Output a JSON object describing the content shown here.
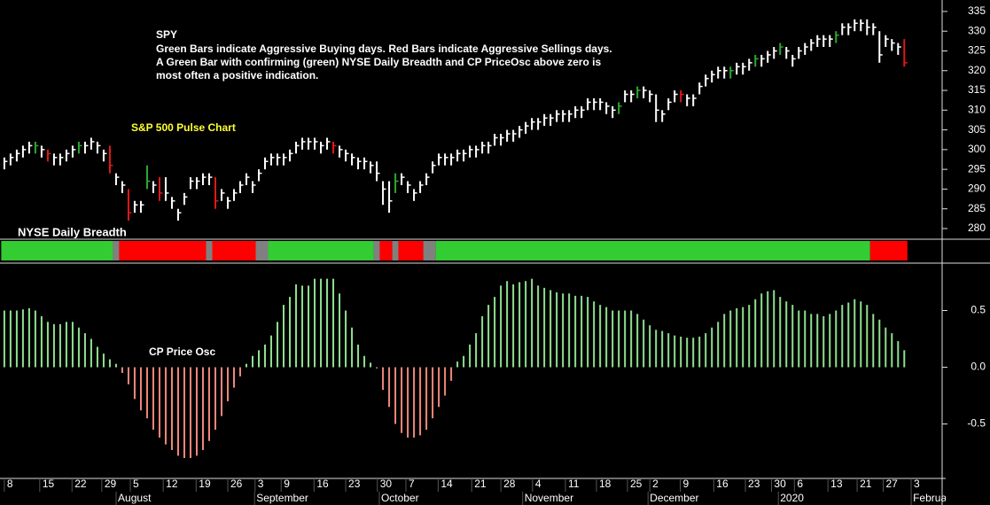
{
  "chart_data": [
    {
      "type": "ohlc",
      "title": "S&P 500 Pulse Chart",
      "annotations": [
        "SPY",
        "Green Bars indicate Aggressive Buying days. Red Bars indicate Aggressive Sellings days.",
        "A Green Bar with confirming (green) NYSE Daily Breadth and CP PriceOsc above zero is",
        "most often a positive indication."
      ],
      "high": [
        298,
        299,
        300,
        301,
        302,
        302,
        301,
        300,
        299,
        299,
        300,
        301,
        302,
        302,
        303,
        302,
        300,
        301,
        294,
        292,
        290,
        287,
        287,
        296,
        292,
        293,
        293,
        288,
        285,
        289,
        293,
        293,
        294,
        294,
        293,
        290,
        288,
        290,
        292,
        294,
        292,
        295,
        298,
        299,
        299,
        299,
        300,
        302,
        303,
        303,
        303,
        302,
        303,
        302,
        301,
        300,
        299,
        298,
        298,
        297,
        297,
        292,
        292,
        294,
        294,
        292,
        290,
        292,
        294,
        297,
        299,
        299,
        299,
        300,
        300,
        301,
        301,
        302,
        302,
        304,
        304,
        305,
        305,
        306,
        307,
        308,
        308,
        309,
        309,
        310,
        310,
        310,
        311,
        311,
        313,
        313,
        313,
        312,
        311,
        312,
        315,
        315,
        316,
        316,
        315,
        314,
        310,
        313,
        315,
        315,
        314,
        314,
        317,
        319,
        320,
        321,
        321,
        321,
        322,
        322,
        323,
        324,
        324,
        325,
        326,
        327,
        326,
        324,
        326,
        327,
        328,
        329,
        329,
        329,
        330,
        332,
        332,
        333,
        333,
        333,
        332,
        330,
        329,
        328,
        327,
        328
      ],
      "low": [
        295,
        296,
        297,
        298,
        299,
        299,
        298,
        297,
        296,
        296,
        297,
        298,
        299,
        299,
        300,
        299,
        297,
        294,
        291,
        289,
        282,
        284,
        284,
        290,
        289,
        287,
        287,
        285,
        282,
        286,
        290,
        290,
        291,
        291,
        285,
        287,
        285,
        287,
        289,
        291,
        289,
        292,
        295,
        296,
        296,
        296,
        297,
        299,
        300,
        300,
        300,
        299,
        300,
        299,
        298,
        297,
        296,
        295,
        295,
        294,
        292,
        286,
        284,
        289,
        291,
        289,
        287,
        289,
        291,
        294,
        296,
        296,
        296,
        297,
        297,
        298,
        298,
        299,
        299,
        301,
        301,
        302,
        302,
        303,
        304,
        305,
        305,
        306,
        306,
        307,
        307,
        307,
        308,
        308,
        310,
        310,
        310,
        309,
        308,
        309,
        312,
        312,
        313,
        313,
        312,
        307,
        307,
        310,
        312,
        312,
        311,
        311,
        314,
        316,
        317,
        318,
        318,
        318,
        319,
        319,
        320,
        321,
        321,
        322,
        323,
        324,
        323,
        321,
        323,
        324,
        325,
        326,
        326,
        326,
        327,
        329,
        329,
        330,
        330,
        329,
        329,
        322,
        326,
        325,
        324,
        321
      ],
      "close": [
        297,
        298,
        299,
        300,
        301,
        301,
        300,
        299,
        298,
        298,
        299,
        300,
        301,
        301,
        302,
        301,
        299,
        296,
        293,
        291,
        284,
        286,
        286,
        292,
        291,
        289,
        289,
        287,
        284,
        288,
        292,
        292,
        293,
        293,
        287,
        289,
        287,
        289,
        291,
        293,
        291,
        294,
        297,
        298,
        298,
        298,
        299,
        301,
        302,
        302,
        302,
        301,
        302,
        301,
        300,
        299,
        298,
        297,
        297,
        296,
        294,
        290,
        287,
        292,
        293,
        291,
        289,
        291,
        293,
        296,
        298,
        298,
        298,
        299,
        299,
        300,
        300,
        301,
        301,
        303,
        303,
        304,
        304,
        305,
        306,
        307,
        307,
        308,
        308,
        309,
        309,
        309,
        310,
        310,
        312,
        312,
        312,
        311,
        310,
        311,
        314,
        314,
        315,
        315,
        314,
        310,
        309,
        312,
        314,
        314,
        313,
        313,
        316,
        318,
        319,
        320,
        320,
        320,
        321,
        321,
        322,
        323,
        323,
        324,
        325,
        326,
        325,
        323,
        325,
        326,
        327,
        328,
        328,
        328,
        329,
        331,
        331,
        332,
        332,
        331,
        331,
        324,
        328,
        327,
        326,
        322
      ],
      "bar_color": "#ffffff",
      "up_color": "#2ea82e",
      "down_color": "#e01818",
      "green_bars": [
        5,
        12,
        23,
        63,
        99,
        102,
        117,
        121,
        125,
        134
      ],
      "red_bars": [
        7,
        17,
        20,
        25,
        34,
        53,
        109,
        145
      ],
      "xlim": [
        -0.7,
        151.1
      ],
      "ylim": [
        277.3,
        337.9
      ],
      "yticks": [
        280,
        285,
        290,
        295,
        300,
        305,
        310,
        315,
        320,
        325,
        330,
        335
      ]
    },
    {
      "type": "breadth",
      "title": "NYSE Daily Breadth",
      "segments": [
        {
          "color": "#33cc33",
          "days": 18
        },
        {
          "color": "#808080",
          "days": 1
        },
        {
          "color": "#ff0000",
          "days": 14
        },
        {
          "color": "#808080",
          "days": 1
        },
        {
          "color": "#ff0000",
          "days": 7
        },
        {
          "color": "#808080",
          "days": 2
        },
        {
          "color": "#33cc33",
          "days": 17
        },
        {
          "color": "#808080",
          "days": 1
        },
        {
          "color": "#ff0000",
          "days": 2
        },
        {
          "color": "#808080",
          "days": 1
        },
        {
          "color": "#ff0000",
          "days": 4
        },
        {
          "color": "#808080",
          "days": 2
        },
        {
          "color": "#33cc33",
          "days": 70
        },
        {
          "color": "#ff0000",
          "days": 6
        }
      ]
    },
    {
      "type": "bar",
      "title": "CP Price Osc",
      "values": [
        0.5,
        0.5,
        0.5,
        0.51,
        0.52,
        0.5,
        0.45,
        0.4,
        0.38,
        0.38,
        0.4,
        0.4,
        0.35,
        0.3,
        0.25,
        0.18,
        0.12,
        0.07,
        0.03,
        -0.05,
        -0.15,
        -0.28,
        -0.38,
        -0.45,
        -0.55,
        -0.62,
        -0.68,
        -0.73,
        -0.78,
        -0.8,
        -0.8,
        -0.78,
        -0.73,
        -0.65,
        -0.55,
        -0.43,
        -0.3,
        -0.18,
        -0.08,
        0.03,
        0.1,
        0.15,
        0.2,
        0.28,
        0.4,
        0.55,
        0.62,
        0.73,
        0.72,
        0.72,
        0.78,
        0.78,
        0.78,
        0.78,
        0.65,
        0.5,
        0.35,
        0.2,
        0.1,
        0.04,
        -0.01,
        -0.2,
        -0.35,
        -0.5,
        -0.58,
        -0.62,
        -0.62,
        -0.6,
        -0.55,
        -0.45,
        -0.35,
        -0.25,
        -0.12,
        0.05,
        0.1,
        0.2,
        0.3,
        0.45,
        0.55,
        0.62,
        0.72,
        0.76,
        0.73,
        0.75,
        0.76,
        0.78,
        0.72,
        0.7,
        0.68,
        0.66,
        0.65,
        0.65,
        0.63,
        0.63,
        0.62,
        0.58,
        0.55,
        0.53,
        0.5,
        0.5,
        0.5,
        0.5,
        0.47,
        0.42,
        0.37,
        0.33,
        0.32,
        0.3,
        0.28,
        0.27,
        0.26,
        0.26,
        0.27,
        0.3,
        0.35,
        0.4,
        0.47,
        0.5,
        0.52,
        0.53,
        0.55,
        0.6,
        0.65,
        0.67,
        0.68,
        0.62,
        0.58,
        0.55,
        0.5,
        0.5,
        0.47,
        0.47,
        0.45,
        0.47,
        0.5,
        0.55,
        0.57,
        0.6,
        0.58,
        0.55,
        0.47,
        0.42,
        0.35,
        0.3,
        0.23,
        0.15
      ],
      "pos_color": "#8fe08f",
      "neg_color": "#f0877c",
      "ylim": [
        -0.98,
        0.91
      ],
      "yticks": [
        -0.5,
        {
          "value": 0,
          "label": "0.0"
        },
        0.5
      ],
      "xlim": [
        -0.7,
        151.1
      ],
      "xticks": [
        {
          "value": 0,
          "label": "8"
        },
        {
          "value": 5.7,
          "label": "15"
        },
        {
          "value": 10.9,
          "label": "22"
        },
        {
          "value": 15.7,
          "label": "29"
        },
        {
          "value": 20.3,
          "label": "5"
        },
        {
          "value": 25.6,
          "label": "12"
        },
        {
          "value": 30.9,
          "label": "19"
        },
        {
          "value": 36,
          "label": "26"
        },
        {
          "value": 40.4,
          "label": "3"
        },
        {
          "value": 44.6,
          "label": "9"
        },
        {
          "value": 49.9,
          "label": "16"
        },
        {
          "value": 55,
          "label": "23"
        },
        {
          "value": 60.1,
          "label": "30"
        },
        {
          "value": 64.7,
          "label": "7"
        },
        {
          "value": 69.9,
          "label": "14"
        },
        {
          "value": 75.3,
          "label": "21"
        },
        {
          "value": 80,
          "label": "28"
        },
        {
          "value": 85.1,
          "label": "4"
        },
        {
          "value": 90.4,
          "label": "11"
        },
        {
          "value": 95.4,
          "label": "18"
        },
        {
          "value": 100.4,
          "label": "25"
        },
        {
          "value": 104,
          "label": "2"
        },
        {
          "value": 108.9,
          "label": "9"
        },
        {
          "value": 114.3,
          "label": "16"
        },
        {
          "value": 119.4,
          "label": "23"
        },
        {
          "value": 123.6,
          "label": "30"
        },
        {
          "value": 127.3,
          "label": "6"
        },
        {
          "value": 132.7,
          "label": "13"
        },
        {
          "value": 137.4,
          "label": "21"
        },
        {
          "value": 141.6,
          "label": "27"
        },
        {
          "value": 146.1,
          "label": "3"
        }
      ],
      "month_ticks": [
        {
          "value": 18.3,
          "label": "August"
        },
        {
          "value": 40.6,
          "label": "September"
        },
        {
          "value": 60.7,
          "label": "October"
        },
        {
          "value": 83.8,
          "label": "November"
        },
        {
          "value": 104,
          "label": "December"
        },
        {
          "value": 125,
          "label": "2020"
        },
        {
          "value": 146.4,
          "label": "February"
        }
      ]
    }
  ]
}
